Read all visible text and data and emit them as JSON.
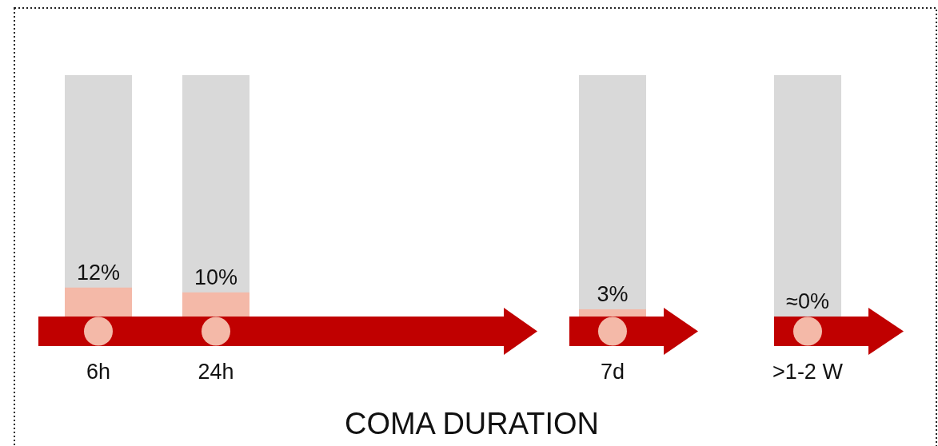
{
  "chart_data": {
    "type": "bar",
    "title": "COMA DURATION",
    "categories": [
      "6h",
      "24h",
      "7d",
      ">1-2 W"
    ],
    "values": [
      12,
      10,
      3,
      0
    ],
    "color": "#f4b9a8",
    "value_labels": [
      "12%",
      "10%",
      "3%",
      "≈0%"
    ],
    "ylim": [
      0,
      100
    ],
    "tick_labels": "x"
  }
}
